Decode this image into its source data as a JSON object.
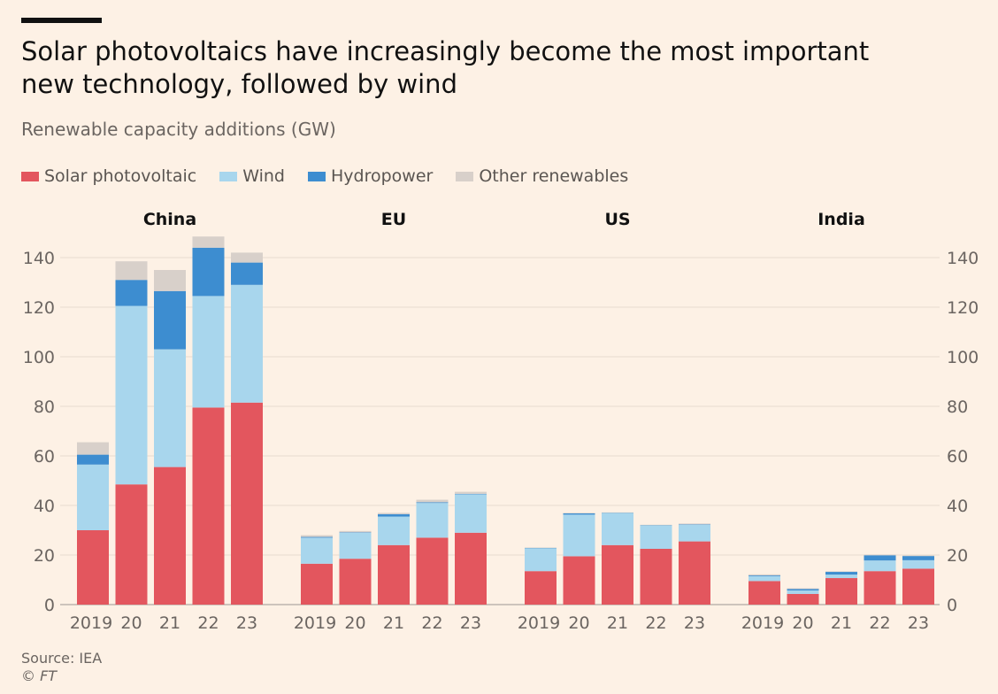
{
  "title": "Solar photovoltaics have increasingly become the most important new technology, followed by wind",
  "subtitle": "Renewable capacity additions (GW)",
  "source": "Source: IEA",
  "credit": "© FT",
  "colors": {
    "background": "#fdf1e5",
    "Solar photovoltaic": "#e3565e",
    "Wind": "#a8d6ed",
    "Hydropower": "#3d8dd0",
    "Other renewables": "#d8d0ca"
  },
  "chart_data": {
    "type": "bar",
    "stacked": true,
    "title": "Solar photovoltaics have increasingly become the most important new technology, followed by wind",
    "subtitle": "Renewable capacity additions (GW)",
    "legend_position": "top-left",
    "grid": true,
    "ylim": [
      0,
      140
    ],
    "yticks": [
      0,
      20,
      40,
      60,
      80,
      100,
      120,
      140
    ],
    "series_names": [
      "Solar photovoltaic",
      "Wind",
      "Hydropower",
      "Other renewables"
    ],
    "panels": [
      {
        "name": "China",
        "categories": [
          "2019",
          "20",
          "21",
          "22",
          "23"
        ],
        "series": [
          {
            "name": "Solar photovoltaic",
            "values": [
              30,
              48.5,
              55.5,
              79.5,
              81.5
            ]
          },
          {
            "name": "Wind",
            "values": [
              26.5,
              72,
              47.5,
              45,
              47.5
            ]
          },
          {
            "name": "Hydropower",
            "values": [
              4,
              10.5,
              23.5,
              19.5,
              9
            ]
          },
          {
            "name": "Other renewables",
            "values": [
              5,
              7.5,
              8.5,
              4.5,
              4
            ]
          }
        ]
      },
      {
        "name": "EU",
        "categories": [
          "2019",
          "20",
          "21",
          "22",
          "23"
        ],
        "series": [
          {
            "name": "Solar photovoltaic",
            "values": [
              16.5,
              18.5,
              24,
              27,
              29
            ]
          },
          {
            "name": "Wind",
            "values": [
              10.5,
              10.5,
              11.5,
              14,
              15.5
            ]
          },
          {
            "name": "Hydropower",
            "values": [
              0.3,
              0.2,
              1,
              0.3,
              0.2
            ]
          },
          {
            "name": "Other renewables",
            "values": [
              0.7,
              0.5,
              0.5,
              1,
              0.8
            ]
          }
        ]
      },
      {
        "name": "US",
        "categories": [
          "2019",
          "20",
          "21",
          "22",
          "23"
        ],
        "series": [
          {
            "name": "Solar photovoltaic",
            "values": [
              13.5,
              19.5,
              24,
              22.5,
              25.5
            ]
          },
          {
            "name": "Wind",
            "values": [
              9.3,
              16.8,
              13,
              9.5,
              6.8
            ]
          },
          {
            "name": "Hydropower",
            "values": [
              0.1,
              0.5,
              0.1,
              0.1,
              0.1
            ]
          },
          {
            "name": "Other renewables",
            "values": [
              0.1,
              0.2,
              0.1,
              0.1,
              0.3
            ]
          }
        ]
      },
      {
        "name": "India",
        "categories": [
          "2019",
          "20",
          "21",
          "22",
          "23"
        ],
        "series": [
          {
            "name": "Solar photovoltaic",
            "values": [
              9.5,
              4.3,
              10.7,
              13.5,
              14.5
            ]
          },
          {
            "name": "Wind",
            "values": [
              2,
              1.4,
              1.4,
              4.3,
              3.4
            ]
          },
          {
            "name": "Hydropower",
            "values": [
              0.3,
              0.6,
              1.1,
              2.1,
              1.7
            ]
          },
          {
            "name": "Other renewables",
            "values": [
              0.4,
              0.3,
              0.2,
              0.3,
              0.2
            ]
          }
        ]
      }
    ]
  }
}
